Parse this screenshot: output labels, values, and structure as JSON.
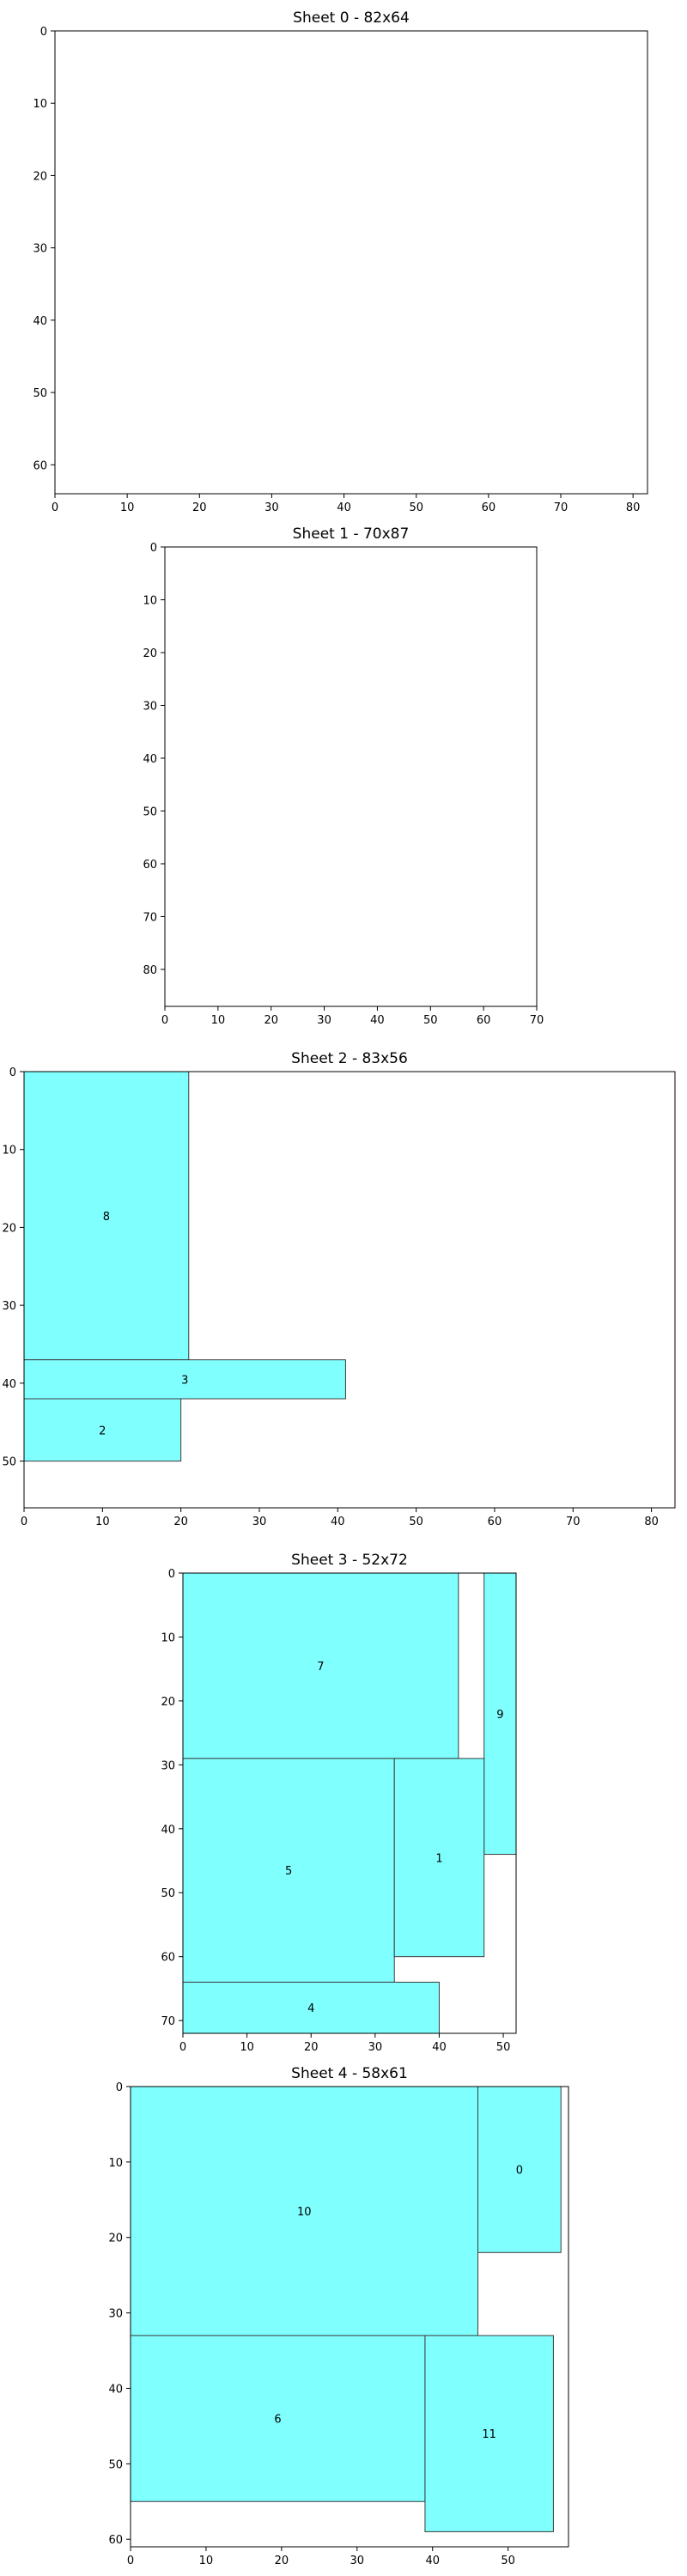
{
  "chart_data": [
    {
      "type": "rect-packing",
      "title": "Sheet 0 - 82x64",
      "xlim": [
        0,
        82
      ],
      "ylim": [
        64,
        0
      ],
      "xticks": [
        0,
        10,
        20,
        30,
        40,
        50,
        60,
        70,
        80
      ],
      "yticks": [
        0,
        10,
        20,
        30,
        40,
        50,
        60
      ],
      "fill_color": "#80ffff",
      "edge_color": "#3c3c3c",
      "pieces": []
    },
    {
      "type": "rect-packing",
      "title": "Sheet 1 - 70x87",
      "xlim": [
        0,
        70
      ],
      "ylim": [
        87,
        0
      ],
      "xticks": [
        0,
        10,
        20,
        30,
        40,
        50,
        60,
        70
      ],
      "yticks": [
        0,
        10,
        20,
        30,
        40,
        50,
        60,
        70,
        80
      ],
      "fill_color": "#80ffff",
      "edge_color": "#3c3c3c",
      "pieces": []
    },
    {
      "type": "rect-packing",
      "title": "Sheet 2 - 83x56",
      "xlim": [
        0,
        83
      ],
      "ylim": [
        56,
        0
      ],
      "xticks": [
        0,
        10,
        20,
        30,
        40,
        50,
        60,
        70,
        80
      ],
      "yticks": [
        0,
        10,
        20,
        30,
        40,
        50
      ],
      "fill_color": "#80ffff",
      "edge_color": "#3c3c3c",
      "pieces": [
        {
          "id": "8",
          "x0": 0,
          "y0": 0,
          "w": 21,
          "h": 37
        },
        {
          "id": "3",
          "x0": 0,
          "y0": 37,
          "w": 41,
          "h": 5
        },
        {
          "id": "2",
          "x0": 0,
          "y0": 42,
          "w": 20,
          "h": 8
        }
      ]
    },
    {
      "type": "rect-packing",
      "title": "Sheet 3 - 52x72",
      "xlim": [
        0,
        52
      ],
      "ylim": [
        72,
        0
      ],
      "xticks": [
        0,
        10,
        20,
        30,
        40,
        50
      ],
      "yticks": [
        0,
        10,
        20,
        30,
        40,
        50,
        60,
        70
      ],
      "fill_color": "#80ffff",
      "edge_color": "#3c3c3c",
      "pieces": [
        {
          "id": "7",
          "x0": 0,
          "y0": 0,
          "w": 43,
          "h": 29
        },
        {
          "id": "9",
          "x0": 47,
          "y0": 0,
          "w": 5,
          "h": 44
        },
        {
          "id": "5",
          "x0": 0,
          "y0": 29,
          "w": 33,
          "h": 35
        },
        {
          "id": "1",
          "x0": 33,
          "y0": 29,
          "w": 14,
          "h": 31
        },
        {
          "id": "4",
          "x0": 0,
          "y0": 64,
          "w": 40,
          "h": 8
        }
      ]
    },
    {
      "type": "rect-packing",
      "title": "Sheet 4 - 58x61",
      "xlim": [
        0,
        58
      ],
      "ylim": [
        61,
        0
      ],
      "xticks": [
        0,
        10,
        20,
        30,
        40,
        50
      ],
      "yticks": [
        0,
        10,
        20,
        30,
        40,
        50,
        60
      ],
      "fill_color": "#80ffff",
      "edge_color": "#3c3c3c",
      "pieces": [
        {
          "id": "10",
          "x0": 0,
          "y0": 0,
          "w": 46,
          "h": 33
        },
        {
          "id": "0",
          "x0": 46,
          "y0": 0,
          "w": 11,
          "h": 22
        },
        {
          "id": "6",
          "x0": 0,
          "y0": 33,
          "w": 39,
          "h": 22
        },
        {
          "id": "11",
          "x0": 39,
          "y0": 33,
          "w": 17,
          "h": 26
        }
      ]
    }
  ]
}
